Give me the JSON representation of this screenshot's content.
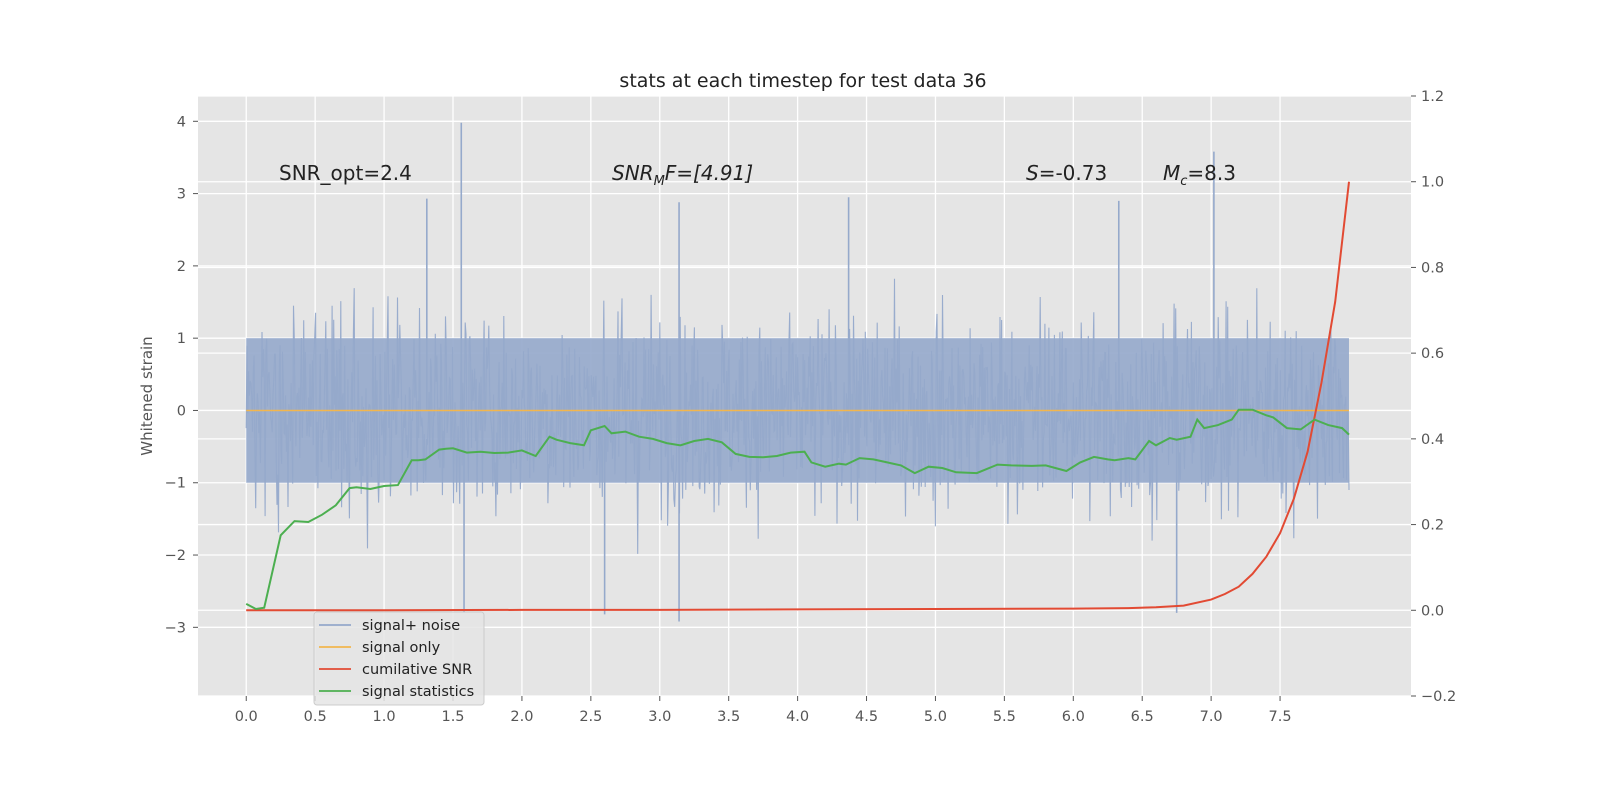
{
  "chart_data": {
    "type": "line",
    "title": "stats at each timestep for test data 36",
    "ylabel": "Whitened strain",
    "xlim": [
      -0.35,
      8.45
    ],
    "ylim": [
      -3.95,
      4.35
    ],
    "y2lim": [
      -0.2,
      1.2
    ],
    "x_ticks": [
      "0.0",
      "0.5",
      "1.0",
      "1.5",
      "2.0",
      "2.5",
      "3.0",
      "3.5",
      "4.0",
      "4.5",
      "5.0",
      "5.5",
      "6.0",
      "6.5",
      "7.0",
      "7.5"
    ],
    "y_ticks": [
      "4",
      "3",
      "2",
      "1",
      "0",
      "−1",
      "−2",
      "−3"
    ],
    "y2_ticks": [
      "1.2",
      "1.0",
      "0.8",
      "0.6",
      "0.4",
      "0.2",
      "0.0",
      "−0.2"
    ],
    "grid": true,
    "legend_position": "lower-left",
    "colors": {
      "background": "#e5e5e5",
      "grid": "#ffffff",
      "noise": "#95a9cb",
      "signal": "#f2b64e",
      "snr": "#e24a33",
      "stats": "#4caf50"
    },
    "annotations": {
      "snr_opt": "SNR_opt=2.4",
      "snr_mf_main": "SNR",
      "snr_mf_sub": "M",
      "snr_mf_rest": "F=[4.91]",
      "s_main": "S",
      "s_rest": "=-0.73",
      "mc_main": "M",
      "mc_sub": "c",
      "mc_rest": "=8.3"
    },
    "series": [
      {
        "name": "signal+ noise",
        "x_range": [
          0,
          8.0
        ],
        "amplitude_band": [
          -1.0,
          1.0
        ],
        "peaks": [
          [
            1.56,
            3.98
          ],
          [
            7.02,
            3.58
          ],
          [
            1.31,
            2.93
          ],
          [
            4.37,
            2.95
          ],
          [
            3.14,
            2.88
          ],
          [
            6.33,
            2.9
          ],
          [
            1.58,
            -2.8
          ],
          [
            2.6,
            -2.82
          ],
          [
            3.14,
            -2.92
          ],
          [
            6.75,
            -2.8
          ]
        ]
      },
      {
        "name": "signal only",
        "x": [
          0,
          8.0
        ],
        "y": [
          0,
          0
        ]
      },
      {
        "name": "cumilative SNR",
        "axis": "right",
        "x": [
          0,
          1,
          2,
          3,
          4,
          5,
          6,
          6.4,
          6.6,
          6.8,
          7.0,
          7.1,
          7.2,
          7.3,
          7.4,
          7.5,
          7.6,
          7.7,
          7.8,
          7.9,
          8.0
        ],
        "y": [
          0,
          0,
          0.001,
          0.001,
          0.002,
          0.003,
          0.004,
          0.005,
          0.007,
          0.011,
          0.025,
          0.038,
          0.055,
          0.085,
          0.125,
          0.18,
          0.26,
          0.37,
          0.53,
          0.72,
          1.0
        ]
      },
      {
        "name": "signal statistics",
        "axis": "right",
        "x": [
          0,
          0.07,
          0.13,
          0.25,
          0.35,
          0.45,
          0.55,
          0.65,
          0.75,
          0.8,
          0.9,
          1.0,
          1.1,
          1.2,
          1.25,
          1.3,
          1.4,
          1.45,
          1.5,
          1.6,
          1.7,
          1.8,
          1.9,
          2.0,
          2.1,
          2.2,
          2.25,
          2.35,
          2.45,
          2.5,
          2.6,
          2.65,
          2.75,
          2.85,
          2.95,
          3.05,
          3.15,
          3.25,
          3.35,
          3.45,
          3.55,
          3.65,
          3.75,
          3.85,
          3.95,
          4.05,
          4.1,
          4.2,
          4.3,
          4.35,
          4.45,
          4.55,
          4.65,
          4.75,
          4.85,
          4.95,
          5.05,
          5.15,
          5.3,
          5.45,
          5.55,
          5.7,
          5.8,
          5.95,
          6.05,
          6.15,
          6.25,
          6.3,
          6.4,
          6.45,
          6.55,
          6.6,
          6.7,
          6.75,
          6.85,
          6.9,
          6.95,
          7.05,
          7.15,
          7.2,
          7.3,
          7.4,
          7.45,
          7.55,
          7.65,
          7.75,
          7.85,
          7.95,
          8.0
        ],
        "y": [
          0.015,
          0.003,
          0.006,
          0.175,
          0.208,
          0.206,
          0.223,
          0.245,
          0.285,
          0.287,
          0.283,
          0.29,
          0.292,
          0.35,
          0.35,
          0.352,
          0.375,
          0.377,
          0.378,
          0.368,
          0.37,
          0.367,
          0.368,
          0.373,
          0.36,
          0.405,
          0.398,
          0.39,
          0.385,
          0.42,
          0.43,
          0.413,
          0.417,
          0.405,
          0.4,
          0.39,
          0.385,
          0.395,
          0.4,
          0.392,
          0.365,
          0.358,
          0.357,
          0.36,
          0.368,
          0.37,
          0.345,
          0.335,
          0.342,
          0.34,
          0.355,
          0.352,
          0.345,
          0.338,
          0.32,
          0.335,
          0.332,
          0.322,
          0.32,
          0.34,
          0.338,
          0.337,
          0.338,
          0.325,
          0.345,
          0.358,
          0.352,
          0.35,
          0.355,
          0.352,
          0.395,
          0.385,
          0.402,
          0.398,
          0.405,
          0.445,
          0.425,
          0.432,
          0.445,
          0.468,
          0.468,
          0.455,
          0.45,
          0.425,
          0.422,
          0.445,
          0.432,
          0.425,
          0.41
        ]
      }
    ]
  }
}
